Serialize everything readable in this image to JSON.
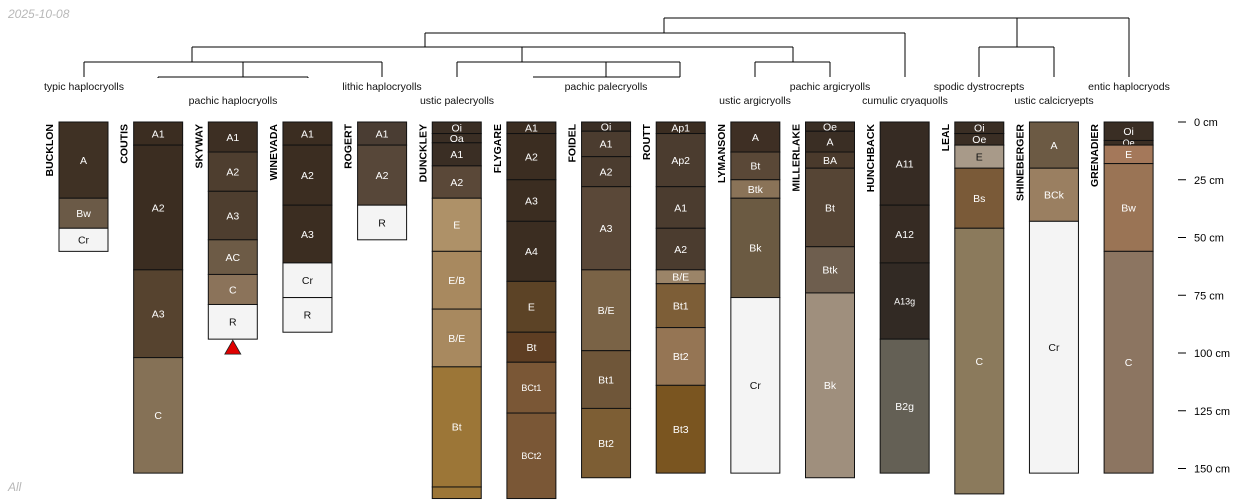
{
  "date_stamp": "2025-10-08",
  "footer_label": "All",
  "depth_axis": {
    "unit": "cm",
    "max": 163,
    "ticks": [
      {
        "value": 0,
        "label": "0 cm"
      },
      {
        "value": 25,
        "label": "25 cm"
      },
      {
        "value": 50,
        "label": "50 cm"
      },
      {
        "value": 75,
        "label": "75 cm"
      },
      {
        "value": 100,
        "label": "100 cm"
      },
      {
        "value": 125,
        "label": "125 cm"
      },
      {
        "value": 150,
        "label": "150 cm"
      }
    ]
  },
  "taxon_labels": [
    {
      "text": "typic haplocryolls",
      "tier": "upper"
    },
    {
      "text": "pachic haplocryolls",
      "tier": "lower"
    },
    {
      "text": "lithic haplocryolls",
      "tier": "upper"
    },
    {
      "text": "ustic palecryolls",
      "tier": "lower"
    },
    {
      "text": "pachic palecryolls",
      "tier": "upper"
    },
    {
      "text": "ustic argicryolls",
      "tier": "lower"
    },
    {
      "text": "pachic argicryolls",
      "tier": "upper"
    },
    {
      "text": "cumulic cryaquolls",
      "tier": "lower"
    },
    {
      "text": "spodic dystrocrepts",
      "tier": "upper"
    },
    {
      "text": "ustic calcicryepts",
      "tier": "lower"
    },
    {
      "text": "entic haplocryods",
      "tier": "upper"
    }
  ],
  "profiles": [
    {
      "name": "BUCKLON",
      "marker": false,
      "horizons": [
        {
          "name": "A",
          "top": 0,
          "bottom": 33,
          "color": "#3f3124"
        },
        {
          "name": "Bw",
          "top": 33,
          "bottom": 46,
          "color": "#6b5a47"
        },
        {
          "name": "Cr",
          "top": 46,
          "bottom": 56,
          "color": "#f4f4f4"
        }
      ]
    },
    {
      "name": "COUTIS",
      "marker": false,
      "horizons": [
        {
          "name": "A1",
          "top": 0,
          "bottom": 10,
          "color": "#3b2d21"
        },
        {
          "name": "A2",
          "top": 10,
          "bottom": 64,
          "color": "#3b2d21"
        },
        {
          "name": "A3",
          "top": 64,
          "bottom": 102,
          "color": "#56432f"
        },
        {
          "name": "C",
          "top": 102,
          "bottom": 152,
          "color": "#857156"
        }
      ]
    },
    {
      "name": "SKYWAY",
      "marker": true,
      "horizons": [
        {
          "name": "A1",
          "top": 0,
          "bottom": 13,
          "color": "#3d2f23"
        },
        {
          "name": "A2",
          "top": 13,
          "bottom": 30,
          "color": "#4e3e2f"
        },
        {
          "name": "A3",
          "top": 30,
          "bottom": 51,
          "color": "#4e3e2f"
        },
        {
          "name": "AC",
          "top": 51,
          "bottom": 66,
          "color": "#6d5b46"
        },
        {
          "name": "C",
          "top": 66,
          "bottom": 79,
          "color": "#8b735a"
        },
        {
          "name": "R",
          "top": 79,
          "bottom": 94,
          "color": "#f4f4f4"
        }
      ]
    },
    {
      "name": "WINEVADA",
      "marker": false,
      "horizons": [
        {
          "name": "A1",
          "top": 0,
          "bottom": 10,
          "color": "#3b2d21"
        },
        {
          "name": "A2",
          "top": 10,
          "bottom": 36,
          "color": "#3b2d21"
        },
        {
          "name": "A3",
          "top": 36,
          "bottom": 61,
          "color": "#3b2d21"
        },
        {
          "name": "Cr",
          "top": 61,
          "bottom": 76,
          "color": "#f4f4f4"
        },
        {
          "name": "R",
          "top": 76,
          "bottom": 91,
          "color": "#f4f4f4"
        }
      ]
    },
    {
      "name": "ROGERT",
      "marker": false,
      "horizons": [
        {
          "name": "A1",
          "top": 0,
          "bottom": 10,
          "color": "#4a3d33"
        },
        {
          "name": "A2",
          "top": 10,
          "bottom": 36,
          "color": "#574739"
        },
        {
          "name": "R",
          "top": 36,
          "bottom": 51,
          "color": "#f4f4f4"
        }
      ]
    },
    {
      "name": "DUNCKLEY",
      "marker": false,
      "horizons": [
        {
          "name": "Oi",
          "top": 0,
          "bottom": 5,
          "color": "#3a2e24"
        },
        {
          "name": "Oa",
          "top": 5,
          "bottom": 9,
          "color": "#3a2e24"
        },
        {
          "name": "A1",
          "top": 9,
          "bottom": 19,
          "color": "#3a2e24"
        },
        {
          "name": "A2",
          "top": 19,
          "bottom": 33,
          "color": "#5a4838"
        },
        {
          "name": "E",
          "top": 33,
          "bottom": 56,
          "color": "#ae9168"
        },
        {
          "name": "E/B",
          "top": 56,
          "bottom": 81,
          "color": "#a8895f"
        },
        {
          "name": "B/E",
          "top": 81,
          "bottom": 106,
          "color": "#a8895f"
        },
        {
          "name": "Bt",
          "top": 106,
          "bottom": 158,
          "color": "#9c7637"
        },
        {
          "name": "",
          "top": 158,
          "bottom": 163,
          "color": "#9c7637"
        }
      ]
    },
    {
      "name": "FLYGARE",
      "marker": false,
      "horizons": [
        {
          "name": "A1",
          "top": 0,
          "bottom": 5,
          "color": "#3b2d21"
        },
        {
          "name": "A2",
          "top": 5,
          "bottom": 25,
          "color": "#3b2d21"
        },
        {
          "name": "A3",
          "top": 25,
          "bottom": 43,
          "color": "#3b2d21"
        },
        {
          "name": "A4",
          "top": 43,
          "bottom": 69,
          "color": "#3b2d21"
        },
        {
          "name": "E",
          "top": 69,
          "bottom": 91,
          "color": "#5c4326"
        },
        {
          "name": "Bt",
          "top": 91,
          "bottom": 104,
          "color": "#5e3e23"
        },
        {
          "name": "BCt1",
          "top": 104,
          "bottom": 126,
          "color": "#7a5736"
        },
        {
          "name": "BCt2",
          "top": 126,
          "bottom": 163,
          "color": "#7a5736"
        }
      ]
    },
    {
      "name": "FOIDEL",
      "marker": false,
      "horizons": [
        {
          "name": "Oi",
          "top": 0,
          "bottom": 4,
          "color": "#3a2e24"
        },
        {
          "name": "A1",
          "top": 4,
          "bottom": 15,
          "color": "#4b3c2f"
        },
        {
          "name": "A2",
          "top": 15,
          "bottom": 28,
          "color": "#4b3c2f"
        },
        {
          "name": "A3",
          "top": 28,
          "bottom": 64,
          "color": "#5a4838"
        },
        {
          "name": "B/E",
          "top": 64,
          "bottom": 99,
          "color": "#7a6346"
        },
        {
          "name": "Bt1",
          "top": 99,
          "bottom": 124,
          "color": "#6f5639"
        },
        {
          "name": "Bt2",
          "top": 124,
          "bottom": 154,
          "color": "#7d5e34"
        }
      ]
    },
    {
      "name": "ROUTT",
      "marker": false,
      "horizons": [
        {
          "name": "Ap1",
          "top": 0,
          "bottom": 5,
          "color": "#3b2d21"
        },
        {
          "name": "Ap2",
          "top": 5,
          "bottom": 28,
          "color": "#4b3c2f"
        },
        {
          "name": "A1",
          "top": 28,
          "bottom": 46,
          "color": "#4b3c2f"
        },
        {
          "name": "A2",
          "top": 46,
          "bottom": 64,
          "color": "#4b3c2f"
        },
        {
          "name": "B/E",
          "top": 64,
          "bottom": 70,
          "color": "#9b8468"
        },
        {
          "name": "Bt1",
          "top": 70,
          "bottom": 89,
          "color": "#7d5e37"
        },
        {
          "name": "Bt2",
          "top": 89,
          "bottom": 114,
          "color": "#957554"
        },
        {
          "name": "Bt3",
          "top": 114,
          "bottom": 152,
          "color": "#7a5520"
        }
      ]
    },
    {
      "name": "LYMANSON",
      "marker": false,
      "horizons": [
        {
          "name": "A",
          "top": 0,
          "bottom": 13,
          "color": "#3e2f24"
        },
        {
          "name": "Bt",
          "top": 13,
          "bottom": 25,
          "color": "#5a4837"
        },
        {
          "name": "Btk",
          "top": 25,
          "bottom": 33,
          "color": "#8a7358"
        },
        {
          "name": "Bk",
          "top": 33,
          "bottom": 76,
          "color": "#6b5a42"
        },
        {
          "name": "Cr",
          "top": 76,
          "bottom": 152,
          "color": "#f4f4f4"
        }
      ]
    },
    {
      "name": "MILLERLAKE",
      "marker": false,
      "horizons": [
        {
          "name": "Oe",
          "top": 0,
          "bottom": 4,
          "color": "#3a2e24"
        },
        {
          "name": "A",
          "top": 4,
          "bottom": 13,
          "color": "#3a2e24"
        },
        {
          "name": "BA",
          "top": 13,
          "bottom": 20,
          "color": "#4a3a2c"
        },
        {
          "name": "Bt",
          "top": 20,
          "bottom": 54,
          "color": "#564535"
        },
        {
          "name": "Btk",
          "top": 54,
          "bottom": 74,
          "color": "#6e5e4e"
        },
        {
          "name": "Bk",
          "top": 74,
          "bottom": 154,
          "color": "#9f8f7d"
        }
      ]
    },
    {
      "name": "HUNCHBACK",
      "marker": false,
      "horizons": [
        {
          "name": "A11",
          "top": 0,
          "bottom": 36,
          "color": "#362b23"
        },
        {
          "name": "A12",
          "top": 36,
          "bottom": 61,
          "color": "#362b23"
        },
        {
          "name": "A13g",
          "top": 61,
          "bottom": 94,
          "color": "#322a24"
        },
        {
          "name": "B2g",
          "top": 94,
          "bottom": 152,
          "color": "#646055"
        }
      ]
    },
    {
      "name": "LEAL",
      "marker": false,
      "horizons": [
        {
          "name": "Oi",
          "top": 0,
          "bottom": 5,
          "color": "#3a2e24"
        },
        {
          "name": "Oe",
          "top": 5,
          "bottom": 10,
          "color": "#3a2e24"
        },
        {
          "name": "E",
          "top": 10,
          "bottom": 20,
          "color": "#a89a89"
        },
        {
          "name": "Bs",
          "top": 20,
          "bottom": 46,
          "color": "#7a5a38"
        },
        {
          "name": "C",
          "top": 46,
          "bottom": 161,
          "color": "#8b7a5c"
        }
      ]
    },
    {
      "name": "SHINEBERGER",
      "marker": false,
      "horizons": [
        {
          "name": "A",
          "top": 0,
          "bottom": 20,
          "color": "#6c5a44"
        },
        {
          "name": "BCk",
          "top": 20,
          "bottom": 43,
          "color": "#9a7f61"
        },
        {
          "name": "Cr",
          "top": 43,
          "bottom": 152,
          "color": "#f4f4f4"
        }
      ]
    },
    {
      "name": "GRENADIER",
      "marker": false,
      "horizons": [
        {
          "name": "Oi",
          "top": 0,
          "bottom": 8,
          "color": "#3a2e24"
        },
        {
          "name": "Oe",
          "top": 8,
          "bottom": 10,
          "color": "#3a2e24"
        },
        {
          "name": "E",
          "top": 10,
          "bottom": 18,
          "color": "#a4785a"
        },
        {
          "name": "Bw",
          "top": 18,
          "bottom": 56,
          "color": "#9a7455"
        },
        {
          "name": "C",
          "top": 56,
          "bottom": 152,
          "color": "#8c7561"
        }
      ]
    }
  ]
}
